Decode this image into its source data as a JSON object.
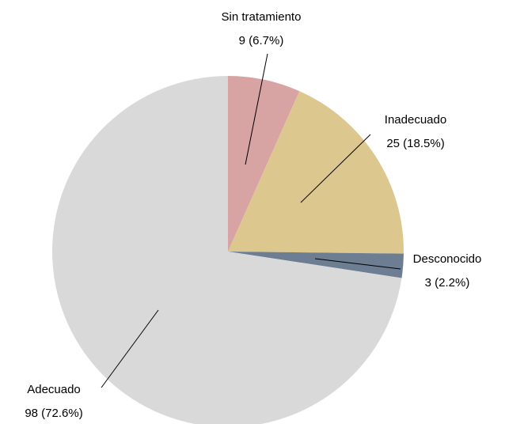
{
  "chart_data": {
    "type": "pie",
    "categories": [
      "Sin tratamiento",
      "Inadecuado",
      "Desconocido",
      "Adecuado"
    ],
    "values": [
      9,
      25,
      3,
      98
    ],
    "value_labels": [
      "9 (6.7%)",
      "25 (18.5%)",
      "3 (2.2%)",
      "98 (72.6%)"
    ],
    "colors": [
      "#d8a3a3",
      "#dcc78e",
      "#6d7e92",
      "#d9d9d9"
    ]
  }
}
